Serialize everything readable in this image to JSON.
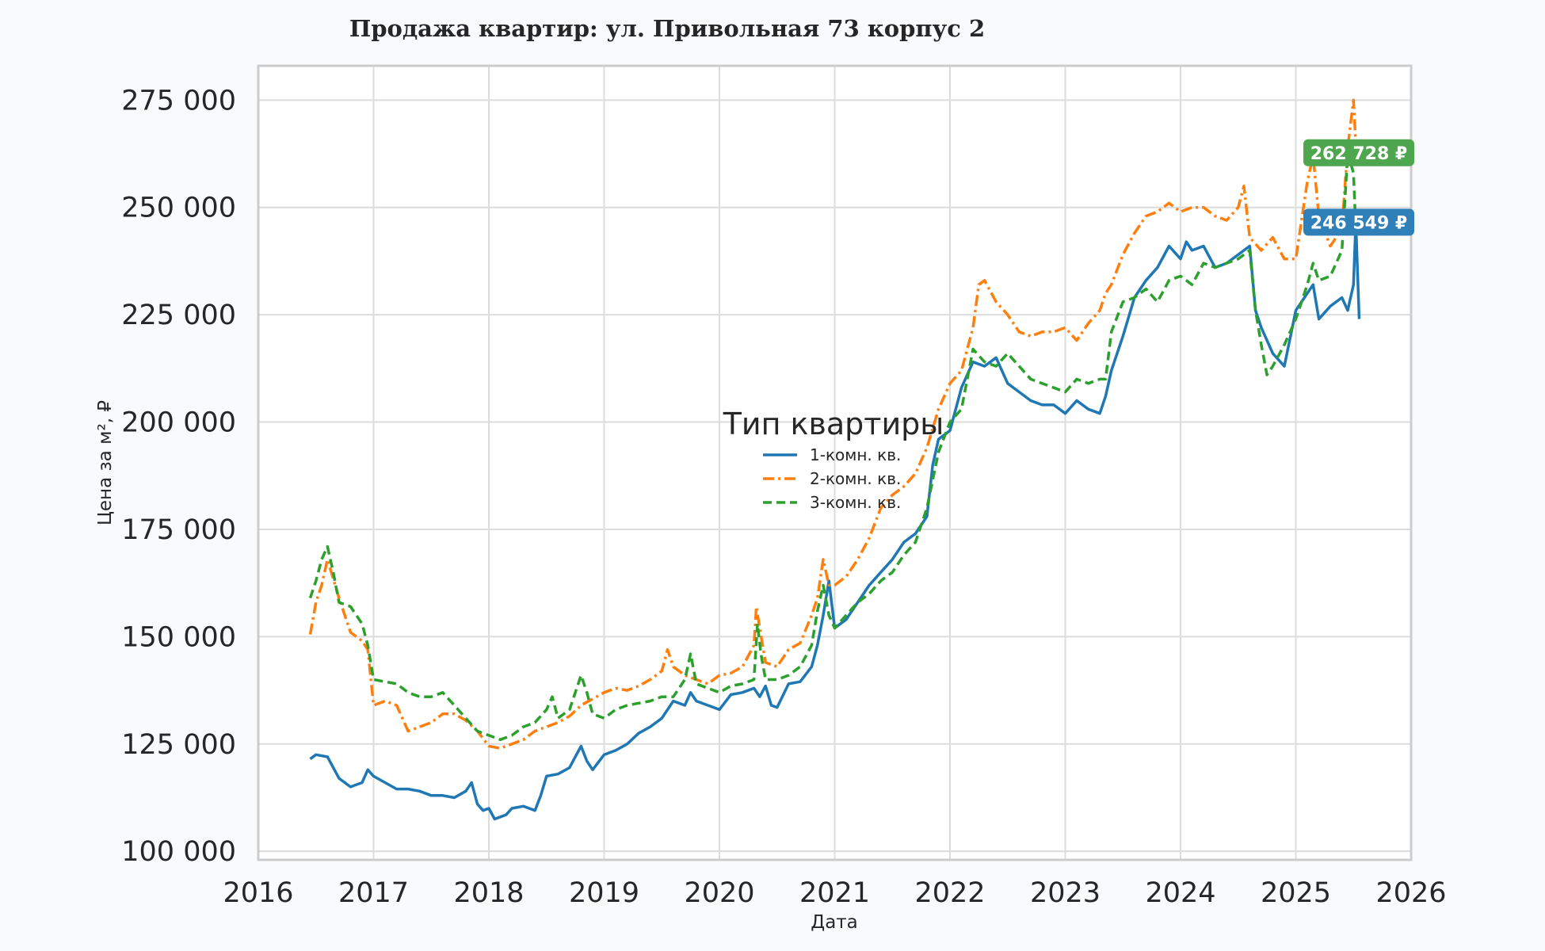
{
  "chart_data": {
    "type": "line",
    "title": "Продажа квартир: ул. Привольная 73 корпус 2",
    "xlabel": "Дата",
    "ylabel": "Цена за м², ₽",
    "xlim": [
      2016.0,
      2026.0
    ],
    "ylim": [
      98000,
      283000
    ],
    "x_ticks": [
      2016,
      2017,
      2018,
      2019,
      2020,
      2021,
      2022,
      2023,
      2024,
      2025,
      2026
    ],
    "x_tick_labels": [
      "2016",
      "2017",
      "2018",
      "2019",
      "2020",
      "2021",
      "2022",
      "2023",
      "2024",
      "2025",
      "2026"
    ],
    "y_ticks": [
      100000,
      125000,
      150000,
      175000,
      200000,
      225000,
      250000,
      275000
    ],
    "y_tick_labels": [
      "100 000",
      "125 000",
      "150 000",
      "175 000",
      "200 000",
      "225 000",
      "250 000",
      "275 000"
    ],
    "grid": true,
    "legend": {
      "title": "Тип квартиры",
      "placement": "center"
    },
    "series": [
      {
        "name": "1-комн. кв.",
        "color": "#1f77b4",
        "dash": "solid",
        "x": [
          2016.45,
          2016.5,
          2016.6,
          2016.7,
          2016.8,
          2016.9,
          2016.95,
          2017.0,
          2017.1,
          2017.2,
          2017.3,
          2017.4,
          2017.5,
          2017.6,
          2017.7,
          2017.8,
          2017.85,
          2017.9,
          2017.95,
          2018.0,
          2018.05,
          2018.1,
          2018.15,
          2018.2,
          2018.3,
          2018.4,
          2018.45,
          2018.5,
          2018.6,
          2018.7,
          2018.75,
          2018.8,
          2018.85,
          2018.9,
          2019.0,
          2019.1,
          2019.2,
          2019.3,
          2019.4,
          2019.5,
          2019.6,
          2019.7,
          2019.75,
          2019.8,
          2019.9,
          2020.0,
          2020.1,
          2020.2,
          2020.3,
          2020.35,
          2020.4,
          2020.45,
          2020.5,
          2020.6,
          2020.7,
          2020.8,
          2020.85,
          2020.9,
          2020.95,
          2021.0,
          2021.1,
          2021.2,
          2021.3,
          2021.4,
          2021.5,
          2021.6,
          2021.7,
          2021.75,
          2021.8,
          2021.85,
          2021.9,
          2022.0,
          2022.1,
          2022.2,
          2022.3,
          2022.4,
          2022.5,
          2022.6,
          2022.7,
          2022.8,
          2022.9,
          2023.0,
          2023.1,
          2023.2,
          2023.3,
          2023.35,
          2023.4,
          2023.5,
          2023.6,
          2023.7,
          2023.8,
          2023.9,
          2024.0,
          2024.05,
          2024.1,
          2024.2,
          2024.3,
          2024.4,
          2024.5,
          2024.6,
          2024.65,
          2024.7,
          2024.8,
          2024.9,
          2025.0,
          2025.1,
          2025.15,
          2025.2,
          2025.3,
          2025.4,
          2025.45,
          2025.5,
          2025.52,
          2025.55
        ],
        "y": [
          121500,
          122500,
          122000,
          117000,
          115000,
          116000,
          119000,
          117500,
          116000,
          114500,
          114500,
          114000,
          113000,
          113000,
          112500,
          114000,
          116000,
          111000,
          109500,
          110000,
          107500,
          108000,
          108500,
          110000,
          110500,
          109500,
          113000,
          117500,
          118000,
          119500,
          122000,
          124500,
          121000,
          119000,
          122500,
          123500,
          125000,
          127500,
          129000,
          131000,
          135000,
          134000,
          137000,
          135000,
          134000,
          133000,
          136500,
          137000,
          138000,
          136000,
          138500,
          134000,
          133500,
          139000,
          139500,
          143000,
          148000,
          155000,
          163000,
          152000,
          154000,
          158000,
          162000,
          165000,
          168000,
          172000,
          174000,
          176000,
          178000,
          190000,
          196000,
          198000,
          208000,
          214000,
          213000,
          215000,
          209000,
          207000,
          205000,
          204000,
          204000,
          202000,
          205000,
          203000,
          202000,
          206000,
          212000,
          220000,
          229000,
          233000,
          236000,
          241000,
          238000,
          242000,
          240000,
          241000,
          236000,
          237000,
          239000,
          241000,
          226000,
          222000,
          216000,
          213000,
          226000,
          230000,
          232000,
          224000,
          227000,
          229000,
          226000,
          232000,
          246549,
          224000
        ]
      },
      {
        "name": "2-комн. кв.",
        "color": "#ff7f0e",
        "dash": "dashdot",
        "x": [
          2016.45,
          2016.5,
          2016.55,
          2016.6,
          2016.7,
          2016.8,
          2016.9,
          2016.95,
          2017.0,
          2017.1,
          2017.2,
          2017.25,
          2017.3,
          2017.4,
          2017.5,
          2017.6,
          2017.7,
          2017.8,
          2017.9,
          2018.0,
          2018.1,
          2018.2,
          2018.3,
          2018.4,
          2018.5,
          2018.6,
          2018.7,
          2018.8,
          2018.9,
          2019.0,
          2019.1,
          2019.2,
          2019.3,
          2019.4,
          2019.5,
          2019.55,
          2019.6,
          2019.7,
          2019.8,
          2019.9,
          2020.0,
          2020.1,
          2020.2,
          2020.3,
          2020.32,
          2020.35,
          2020.4,
          2020.5,
          2020.6,
          2020.7,
          2020.8,
          2020.85,
          2020.9,
          2020.95,
          2021.0,
          2021.1,
          2021.2,
          2021.3,
          2021.4,
          2021.5,
          2021.6,
          2021.7,
          2021.8,
          2021.9,
          2022.0,
          2022.1,
          2022.2,
          2022.25,
          2022.3,
          2022.4,
          2022.5,
          2022.6,
          2022.7,
          2022.8,
          2022.9,
          2023.0,
          2023.1,
          2023.2,
          2023.3,
          2023.35,
          2023.4,
          2023.5,
          2023.6,
          2023.7,
          2023.8,
          2023.9,
          2024.0,
          2024.1,
          2024.2,
          2024.3,
          2024.4,
          2024.5,
          2024.55,
          2024.6,
          2024.7,
          2024.8,
          2024.9,
          2025.0,
          2025.1,
          2025.15,
          2025.2,
          2025.3,
          2025.4,
          2025.45,
          2025.5,
          2025.52
        ],
        "y": [
          150500,
          158000,
          162000,
          168000,
          159000,
          151000,
          149000,
          147000,
          134000,
          135000,
          134000,
          131000,
          128000,
          129000,
          130000,
          132000,
          132000,
          130500,
          128000,
          124500,
          124000,
          125000,
          126000,
          128000,
          129000,
          130000,
          131500,
          134000,
          135500,
          137000,
          138000,
          137500,
          138500,
          140000,
          142000,
          147000,
          143000,
          141000,
          140000,
          139000,
          141000,
          141500,
          143000,
          148000,
          157000,
          152000,
          144000,
          143000,
          147000,
          148500,
          155000,
          159000,
          168000,
          162000,
          162000,
          164000,
          168000,
          173000,
          180000,
          183000,
          185000,
          188000,
          194000,
          203000,
          209000,
          212000,
          222000,
          232000,
          233000,
          228000,
          225000,
          221000,
          220000,
          221000,
          221000,
          222000,
          219000,
          223000,
          226000,
          230000,
          232000,
          239000,
          244000,
          248000,
          249000,
          251000,
          249000,
          250000,
          250000,
          248000,
          247000,
          250000,
          255000,
          243000,
          240000,
          243000,
          238000,
          238000,
          256000,
          262000,
          248000,
          241000,
          245000,
          264000,
          275000,
          265000
        ]
      },
      {
        "name": "3-комн. кв.",
        "color": "#2ca02c",
        "dash": "dashed",
        "x": [
          2016.45,
          2016.5,
          2016.55,
          2016.6,
          2016.65,
          2016.7,
          2016.8,
          2016.9,
          2016.95,
          2017.0,
          2017.1,
          2017.2,
          2017.3,
          2017.4,
          2017.5,
          2017.6,
          2017.7,
          2017.8,
          2017.9,
          2018.0,
          2018.1,
          2018.2,
          2018.3,
          2018.4,
          2018.5,
          2018.55,
          2018.6,
          2018.7,
          2018.8,
          2018.85,
          2018.9,
          2019.0,
          2019.1,
          2019.2,
          2019.3,
          2019.4,
          2019.5,
          2019.6,
          2019.7,
          2019.75,
          2019.8,
          2019.9,
          2020.0,
          2020.1,
          2020.2,
          2020.3,
          2020.33,
          2020.36,
          2020.4,
          2020.5,
          2020.6,
          2020.7,
          2020.8,
          2020.85,
          2020.9,
          2020.95,
          2021.0,
          2021.1,
          2021.2,
          2021.3,
          2021.4,
          2021.5,
          2021.6,
          2021.7,
          2021.8,
          2021.9,
          2022.0,
          2022.1,
          2022.2,
          2022.3,
          2022.4,
          2022.5,
          2022.6,
          2022.7,
          2022.8,
          2022.9,
          2023.0,
          2023.1,
          2023.2,
          2023.3,
          2023.35,
          2023.4,
          2023.5,
          2023.6,
          2023.7,
          2023.8,
          2023.9,
          2024.0,
          2024.1,
          2024.2,
          2024.3,
          2024.4,
          2024.5,
          2024.6,
          2024.65,
          2024.7,
          2024.75,
          2024.8,
          2024.9,
          2025.0,
          2025.1,
          2025.15,
          2025.2,
          2025.3,
          2025.4,
          2025.45,
          2025.5,
          2025.52
        ],
        "y": [
          159000,
          163000,
          168000,
          171000,
          165000,
          158000,
          157000,
          153000,
          148000,
          140000,
          139500,
          139000,
          137000,
          136000,
          136000,
          137000,
          134000,
          131000,
          128000,
          127000,
          126000,
          127000,
          129000,
          130000,
          133000,
          136000,
          131000,
          133000,
          141000,
          137000,
          132000,
          131000,
          133000,
          134000,
          134500,
          135000,
          136000,
          136000,
          140000,
          146000,
          139000,
          138000,
          137000,
          138500,
          139000,
          140000,
          153000,
          146000,
          140000,
          140000,
          141000,
          143000,
          148000,
          156000,
          162000,
          155000,
          152000,
          155000,
          158000,
          160000,
          163000,
          165000,
          169000,
          172000,
          180000,
          193000,
          200000,
          203000,
          217000,
          214000,
          213000,
          216000,
          213000,
          210000,
          209000,
          208000,
          207000,
          210000,
          209000,
          210000,
          210000,
          221000,
          228000,
          229000,
          231000,
          228000,
          233000,
          234000,
          232000,
          237000,
          236000,
          237000,
          238000,
          240000,
          226000,
          218000,
          211000,
          213000,
          218000,
          224000,
          232000,
          237000,
          233000,
          234000,
          240000,
          262728,
          258000,
          245000
        ]
      }
    ],
    "last_value_labels": [
      {
        "series": "3-комн. кв.",
        "text": "262 728 ₽",
        "value": 262728,
        "color": "#4ea64e"
      },
      {
        "series": "1-комн. кв.",
        "text": "246 549 ₽",
        "value": 246549,
        "color": "#2f7fb8"
      }
    ]
  }
}
